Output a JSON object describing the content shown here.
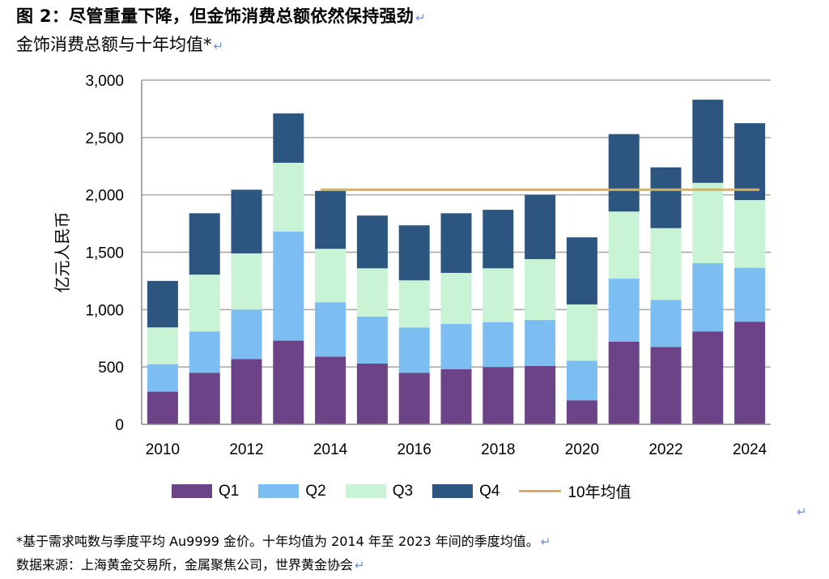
{
  "title": "图 2：尽管重量下降，但金饰消费总额依然保持强劲",
  "subtitle": "金饰消费总额与十年均值*",
  "return_glyph": "↵",
  "chart_data": {
    "type": "bar",
    "stacked": true,
    "ylabel": "亿元人民币",
    "xlabel": "",
    "ylim": [
      0,
      3000
    ],
    "yticks": [
      0,
      500,
      1000,
      1500,
      2000,
      2500,
      3000
    ],
    "ytick_labels": [
      "0",
      "500",
      "1,000",
      "1,500",
      "2,000",
      "2,500",
      "3,000"
    ],
    "categories": [
      "2010",
      "2011",
      "2012",
      "2013",
      "2014",
      "2015",
      "2016",
      "2017",
      "2018",
      "2019",
      "2020",
      "2021",
      "2022",
      "2023",
      "2024"
    ],
    "xtick_labels": [
      "2010",
      "",
      "2012",
      "",
      "2014",
      "",
      "2016",
      "",
      "2018",
      "",
      "2020",
      "",
      "2022",
      "",
      "2024"
    ],
    "series": [
      {
        "name": "Q1",
        "color": "#6c4386",
        "values": [
          285,
          450,
          570,
          730,
          590,
          530,
          450,
          480,
          500,
          510,
          210,
          720,
          675,
          810,
          895
        ]
      },
      {
        "name": "Q2",
        "color": "#7dbef2",
        "values": [
          240,
          360,
          430,
          950,
          475,
          410,
          395,
          395,
          390,
          400,
          345,
          550,
          410,
          595,
          470
        ]
      },
      {
        "name": "Q3",
        "color": "#c9f3d5",
        "values": [
          320,
          495,
          490,
          600,
          465,
          420,
          410,
          445,
          470,
          530,
          490,
          585,
          625,
          700,
          590
        ]
      },
      {
        "name": "Q4",
        "color": "#2c5680",
        "values": [
          405,
          535,
          555,
          430,
          505,
          460,
          480,
          520,
          510,
          560,
          585,
          675,
          530,
          725,
          670
        ]
      }
    ],
    "average_line": {
      "name": "10年均值",
      "color": "#d8b05a",
      "value": 2045,
      "from": "2014",
      "to": "2024"
    },
    "legend_position": "bottom"
  },
  "footnote": "*基于需求吨数与季度平均 Au9999 金价。十年均值为 2014 年至 2023 年间的季度均值。",
  "source": "数据来源：上海黄金交易所，金属聚焦公司，世界黄金协会"
}
